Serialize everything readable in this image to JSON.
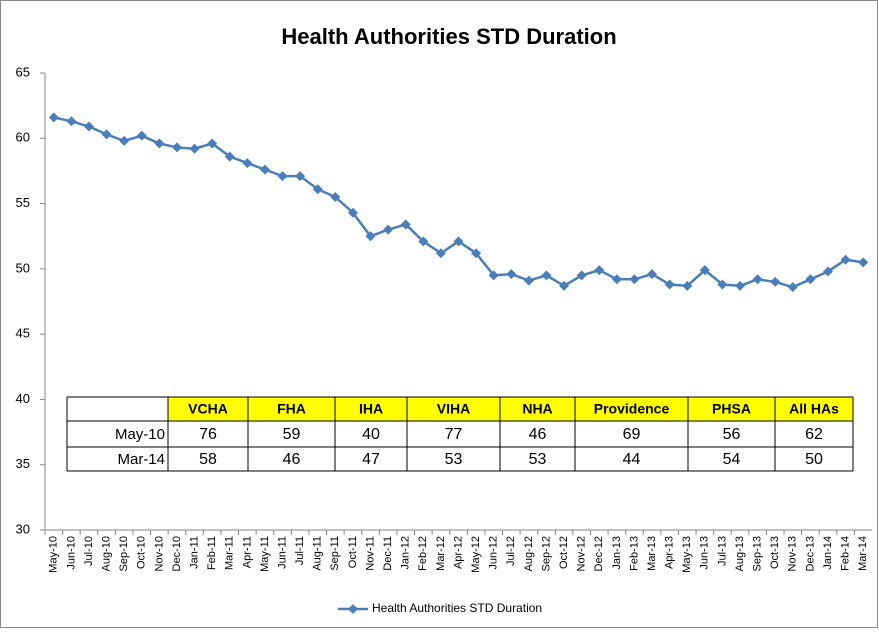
{
  "chart_data": {
    "type": "line",
    "title": "Health Authorities STD Duration",
    "categories": [
      "May-10",
      "Jun-10",
      "Jul-10",
      "Aug-10",
      "Sep-10",
      "Oct-10",
      "Nov-10",
      "Dec-10",
      "Jan-11",
      "Feb-11",
      "Mar-11",
      "Apr-11",
      "May-11",
      "Jun-11",
      "Jul-11",
      "Aug-11",
      "Sep-11",
      "Oct-11",
      "Nov-11",
      "Dec-11",
      "Jan-12",
      "Feb-12",
      "Mar-12",
      "Apr-12",
      "May-12",
      "Jun-12",
      "Jul-12",
      "Aug-12",
      "Sep-12",
      "Oct-12",
      "Nov-12",
      "Dec-12",
      "Jan-13",
      "Feb-13",
      "Mar-13",
      "Apr-13",
      "May-13",
      "Jun-13",
      "Jul-13",
      "Aug-13",
      "Sep-13",
      "Oct-13",
      "Nov-13",
      "Dec-13",
      "Jan-14",
      "Feb-14",
      "Mar-14"
    ],
    "series": [
      {
        "name": "Health Authorities STD Duration",
        "color": "#4a7ebb",
        "values": [
          61.6,
          61.3,
          60.9,
          60.3,
          59.8,
          60.2,
          59.6,
          59.3,
          59.2,
          59.6,
          58.6,
          58.1,
          57.6,
          57.1,
          57.1,
          56.1,
          55.5,
          54.3,
          52.5,
          53.0,
          53.4,
          52.1,
          51.2,
          52.1,
          51.2,
          49.5,
          49.6,
          49.1,
          49.5,
          48.7,
          49.5,
          49.9,
          49.2,
          49.2,
          49.6,
          48.8,
          48.7,
          49.9,
          48.8,
          48.7,
          49.2,
          49.0,
          48.6,
          49.2,
          49.8,
          50.7,
          50.5
        ]
      }
    ],
    "ylim": [
      30,
      65
    ],
    "yticks": [
      30,
      35,
      40,
      45,
      50,
      55,
      60,
      65
    ],
    "grid": false,
    "legend": "bottom",
    "table": {
      "columns": [
        "VCHA",
        "FHA",
        "IHA",
        "VIHA",
        "NHA",
        "Providence",
        "PHSA",
        "All HAs"
      ],
      "rows": [
        {
          "label": "May-10",
          "values": [
            "76",
            "59",
            "40",
            "77",
            "46",
            "69",
            "56",
            "62"
          ]
        },
        {
          "label": "Mar-14",
          "values": [
            "58",
            "46",
            "47",
            "53",
            "53",
            "44",
            "54",
            "50"
          ]
        }
      ]
    }
  }
}
